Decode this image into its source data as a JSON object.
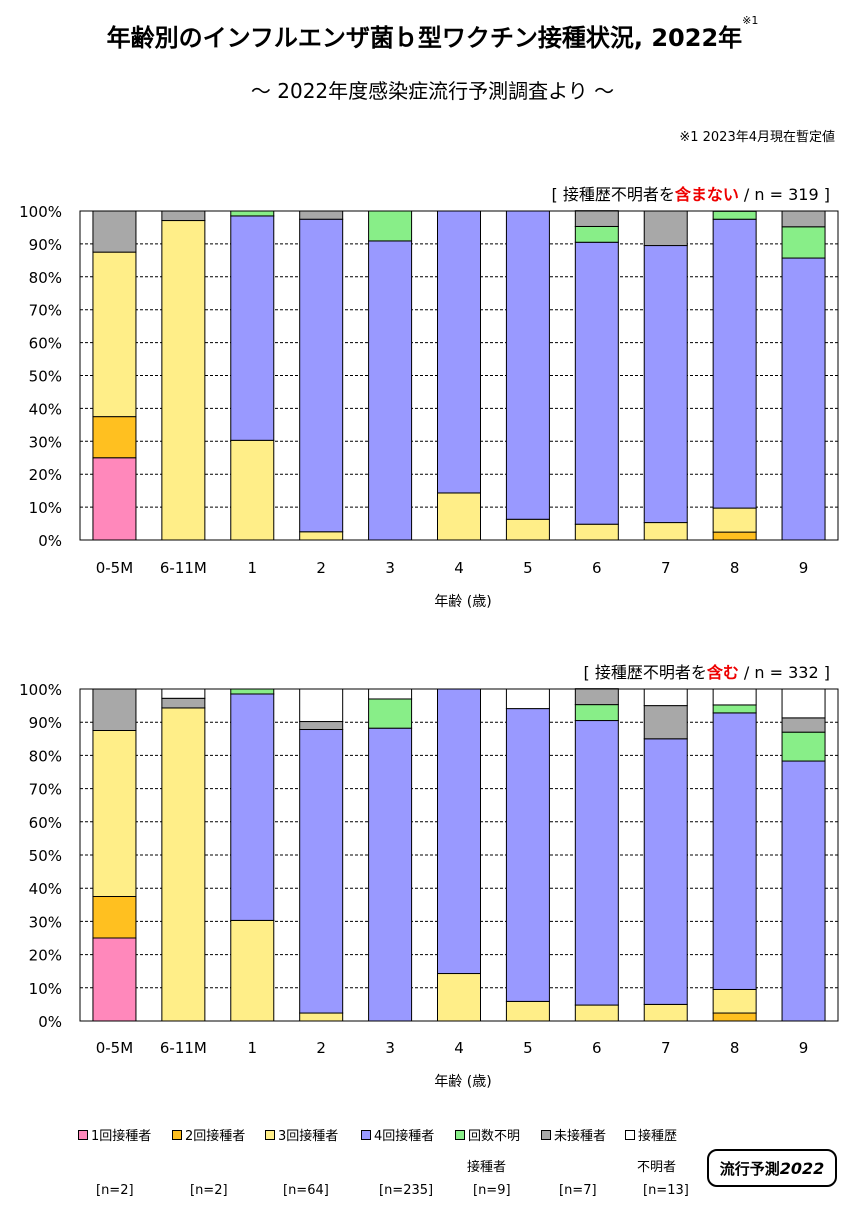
{
  "title": "年齢別のインフルエンザ菌ｂ型ワクチン接種状況, 2022年",
  "title_note_mark": "※1",
  "subtitle": "～ 2022年度感染症流行予測調査より ～",
  "footnote": "※1  2023年4月現在暫定値",
  "colors": {
    "dose1": "#ff88bb",
    "dose2": "#ffc020",
    "dose3": "#ffee88",
    "dose4": "#9999ff",
    "unknown_count": "#88ee88",
    "unvaccinated": "#a8a8a8",
    "unknown_history": "#ffffff"
  },
  "chart_data": [
    {
      "type": "bar",
      "stacked": true,
      "caption_prefix": "[ 接種歴不明者を",
      "caption_emph": "含まない",
      "caption_suffix": " / n = 319 ]",
      "categories": [
        "0-5M",
        "6-11M",
        "1",
        "2",
        "3",
        "4",
        "5",
        "6",
        "7",
        "8",
        "9"
      ],
      "xlabel": "年齢 (歳)",
      "ylabel": "",
      "ylim": [
        0,
        100
      ],
      "y_ticks": [
        "0%",
        "10%",
        "20%",
        "30%",
        "40%",
        "50%",
        "60%",
        "70%",
        "80%",
        "90%",
        "100%"
      ],
      "series": [
        {
          "name": "1回接種者",
          "key": "dose1",
          "values": [
            25,
            0,
            0,
            0,
            0,
            0,
            0,
            0,
            0,
            0,
            0
          ]
        },
        {
          "name": "2回接種者",
          "key": "dose2",
          "values": [
            12.5,
            0,
            0,
            0,
            0,
            0,
            0,
            0,
            0,
            2.4,
            0
          ]
        },
        {
          "name": "3回接種者",
          "key": "dose3",
          "values": [
            50,
            97.1,
            30.3,
            2.5,
            0,
            14.3,
            6.3,
            4.8,
            5.3,
            7.3,
            0
          ]
        },
        {
          "name": "4回接種者",
          "key": "dose4",
          "values": [
            0,
            0,
            68.2,
            95.0,
            90.9,
            85.7,
            93.7,
            85.7,
            84.2,
            87.8,
            85.7
          ]
        },
        {
          "name": "回数不明接種者",
          "key": "unknown_count",
          "values": [
            0,
            0,
            1.5,
            0,
            9.1,
            0,
            0,
            4.8,
            0,
            2.4,
            9.5
          ]
        },
        {
          "name": "未接種者",
          "key": "unvaccinated",
          "values": [
            12.5,
            2.9,
            0,
            2.5,
            0,
            0,
            0,
            4.8,
            10.5,
            0,
            4.8
          ]
        }
      ]
    },
    {
      "type": "bar",
      "stacked": true,
      "caption_prefix": "[ 接種歴不明者を",
      "caption_emph": "含む",
      "caption_suffix": " / n = 332 ]",
      "categories": [
        "0-5M",
        "6-11M",
        "1",
        "2",
        "3",
        "4",
        "5",
        "6",
        "7",
        "8",
        "9"
      ],
      "xlabel": "年齢 (歳)",
      "ylabel": "",
      "ylim": [
        0,
        100
      ],
      "y_ticks": [
        "0%",
        "10%",
        "20%",
        "30%",
        "40%",
        "50%",
        "60%",
        "70%",
        "80%",
        "90%",
        "100%"
      ],
      "series": [
        {
          "name": "1回接種者",
          "key": "dose1",
          "values": [
            25,
            0,
            0,
            0,
            0,
            0,
            0,
            0,
            0,
            0,
            0
          ]
        },
        {
          "name": "2回接種者",
          "key": "dose2",
          "values": [
            12.5,
            0,
            0,
            0,
            0,
            0,
            0,
            0,
            0,
            2.4,
            0
          ]
        },
        {
          "name": "3回接種者",
          "key": "dose3",
          "values": [
            50,
            94.3,
            30.3,
            2.4,
            0,
            14.3,
            5.9,
            4.8,
            5.0,
            7.1,
            0
          ]
        },
        {
          "name": "4回接種者",
          "key": "dose4",
          "values": [
            0,
            0,
            68.2,
            85.4,
            88.2,
            85.7,
            88.2,
            85.7,
            80.0,
            83.3,
            78.3
          ]
        },
        {
          "name": "回数不明接種者",
          "key": "unknown_count",
          "values": [
            0,
            0,
            1.5,
            0,
            8.8,
            0,
            0,
            4.8,
            0,
            2.4,
            8.7
          ]
        },
        {
          "name": "未接種者",
          "key": "unvaccinated",
          "values": [
            12.5,
            2.9,
            0,
            2.4,
            0,
            0,
            0,
            4.8,
            10.0,
            0,
            4.3
          ]
        },
        {
          "name": "接種歴不明者",
          "key": "unknown_history",
          "values": [
            0,
            2.8,
            0,
            9.8,
            3.0,
            0,
            5.9,
            0,
            5.0,
            4.8,
            8.7
          ]
        }
      ]
    }
  ],
  "legend": [
    {
      "key": "dose1",
      "line1": "1回接種者",
      "line2": "",
      "count": "[n=2]"
    },
    {
      "key": "dose2",
      "line1": "2回接種者",
      "line2": "",
      "count": "[n=2]"
    },
    {
      "key": "dose3",
      "line1": "3回接種者",
      "line2": "",
      "count": "[n=64]"
    },
    {
      "key": "dose4",
      "line1": "4回接種者",
      "line2": "",
      "count": "[n=235]"
    },
    {
      "key": "unknown_count",
      "line1": "回数不明",
      "line2": "接種者",
      "count": "[n=9]"
    },
    {
      "key": "unvaccinated",
      "line1": "未接種者",
      "line2": "",
      "count": "[n=7]"
    },
    {
      "key": "unknown_history",
      "line1": "接種歴",
      "line2": "不明者",
      "count": "[n=13]"
    }
  ],
  "logo": {
    "text": "流行予測",
    "year": "2022"
  }
}
